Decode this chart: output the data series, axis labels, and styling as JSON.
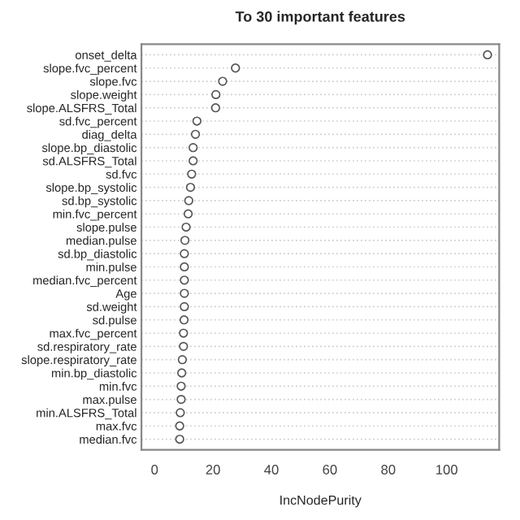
{
  "chart_data": {
    "type": "scatter",
    "orientation": "horizontal",
    "title": "To 30 important features",
    "xlabel": "IncNodePurity",
    "categories": [
      "onset_delta",
      "slope.fvc_percent",
      "slope.fvc",
      "slope.weight",
      "slope.ALSFRS_Total",
      "sd.fvc_percent",
      "diag_delta",
      "slope.bp_diastolic",
      "sd.ALSFRS_Total",
      "sd.fvc",
      "slope.bp_systolic",
      "sd.bp_systolic",
      "min.fvc_percent",
      "slope.pulse",
      "median.pulse",
      "sd.bp_diastolic",
      "min.pulse",
      "median.fvc_percent",
      "Age",
      "sd.weight",
      "sd.pulse",
      "max.fvc_percent",
      "sd.respiratory_rate",
      "slope.respiratory_rate",
      "min.bp_diastolic",
      "min.fvc",
      "max.pulse",
      "min.ALSFRS_Total",
      "max.fvc",
      "median.fvc"
    ],
    "values": [
      114,
      27.7,
      23.3,
      21,
      20.9,
      14.5,
      14,
      13.2,
      13.2,
      12.7,
      12.3,
      11.7,
      11.5,
      10.8,
      10.4,
      10.2,
      10.2,
      10.2,
      10.2,
      10.2,
      10.1,
      9.9,
      9.9,
      9.5,
      9.3,
      9.1,
      9.1,
      8.8,
      8.6,
      8.6
    ],
    "color": "#555555",
    "marker": "circle",
    "grid": "y",
    "xlim": [
      -4.5,
      118
    ],
    "xticks": [
      0,
      20,
      40,
      60,
      80,
      100
    ]
  }
}
